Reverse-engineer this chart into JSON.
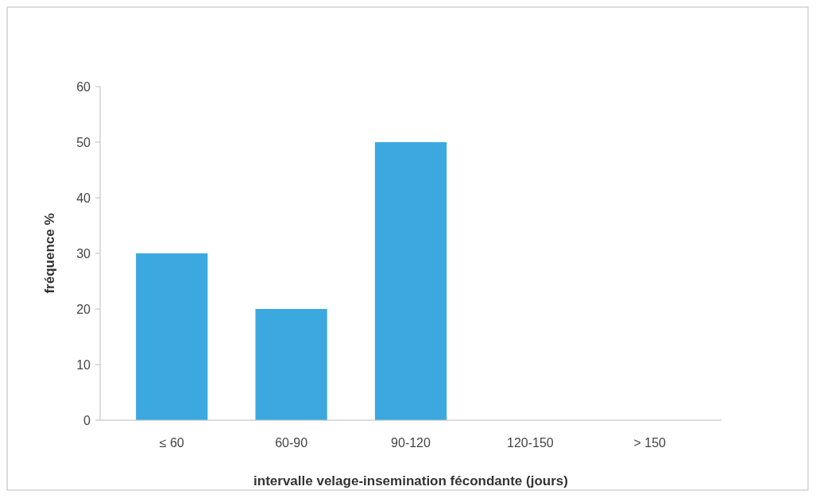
{
  "chart_data": {
    "type": "bar",
    "xlabel": "intervalle velage-insemination fécondante (jours)",
    "ylabel": "fréquence %",
    "categories": [
      "≤ 60",
      "60-90",
      "90-120",
      "120-150",
      "> 150"
    ],
    "values": [
      30,
      20,
      50,
      0,
      0
    ],
    "color": "#3ba9e0",
    "ylim": [
      0,
      60
    ],
    "yticks": [
      0,
      10,
      20,
      30,
      40,
      50,
      60
    ],
    "grid": false
  }
}
